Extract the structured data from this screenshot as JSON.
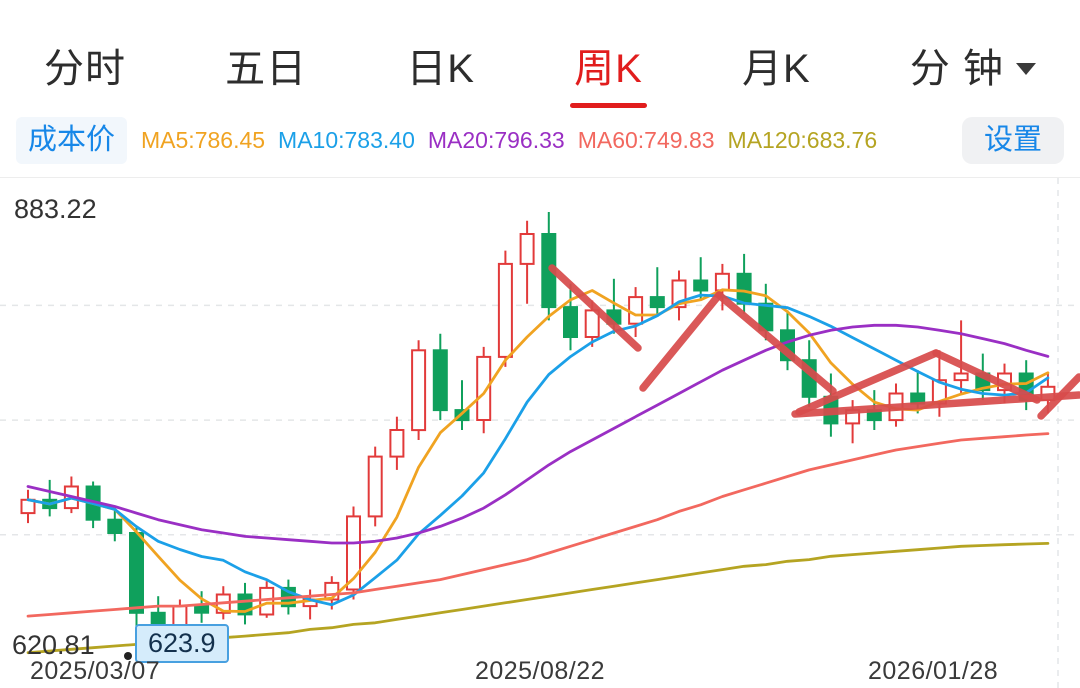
{
  "tabs": {
    "items": [
      {
        "label": "分时",
        "active": false
      },
      {
        "label": "五日",
        "active": false
      },
      {
        "label": "日K",
        "active": false
      },
      {
        "label": "周K",
        "active": true
      },
      {
        "label": "月K",
        "active": false
      },
      {
        "label": "分 钟",
        "active": false,
        "has_dropdown": true
      }
    ]
  },
  "toolbar": {
    "cost_price_label": "成本价",
    "settings_label": "设置",
    "ma_labels": [
      {
        "id": "MA5",
        "text": "MA5:786.45",
        "color": "#f0a321"
      },
      {
        "id": "MA10",
        "text": "MA10:783.40",
        "color": "#1ba0e8"
      },
      {
        "id": "MA20",
        "text": "MA20:796.33",
        "color": "#9a2fc4"
      },
      {
        "id": "MA60",
        "text": "MA60:749.83",
        "color": "#f2685f"
      },
      {
        "id": "MA120",
        "text": "MA120:683.76",
        "color": "#b5a422"
      }
    ]
  },
  "chart": {
    "y_max_label": "883.22",
    "y_min_label": "620.81",
    "low_badge": "623.9",
    "x_labels": [
      "2025/03/07",
      "2025/08/22",
      "2026/01/28"
    ]
  },
  "chart_data": {
    "type": "candlestick",
    "period": "weekly",
    "title": "周K",
    "ylim": [
      620.81,
      883.22
    ],
    "gridlines": [
      827,
      758,
      689
    ],
    "x_axis_labels": [
      "2025/03/07",
      "2025/08/22",
      "2026/01/28"
    ],
    "up_color": "#e23a3a",
    "down_color": "#0fa05c",
    "candles": [
      [
        702,
        716,
        696,
        710
      ],
      [
        710,
        722,
        700,
        705
      ],
      [
        705,
        724,
        702,
        718
      ],
      [
        718,
        721,
        693,
        698
      ],
      [
        698,
        705,
        685,
        690
      ],
      [
        690,
        694,
        627,
        642
      ],
      [
        642,
        652,
        620.81,
        632
      ],
      [
        632,
        650,
        623.9,
        646
      ],
      [
        646,
        655,
        636,
        642
      ],
      [
        642,
        658,
        638,
        653
      ],
      [
        653,
        660,
        635,
        641
      ],
      [
        641,
        661,
        639,
        657
      ],
      [
        657,
        662,
        641,
        646
      ],
      [
        646,
        656,
        638,
        650
      ],
      [
        650,
        664,
        644,
        660
      ],
      [
        656,
        706,
        650,
        700
      ],
      [
        700,
        742,
        694,
        736
      ],
      [
        736,
        760,
        728,
        752
      ],
      [
        752,
        806,
        746,
        800
      ],
      [
        800,
        810,
        758,
        764
      ],
      [
        764,
        782,
        752,
        758
      ],
      [
        758,
        802,
        750,
        796
      ],
      [
        796,
        860,
        790,
        852
      ],
      [
        852,
        878,
        828,
        870
      ],
      [
        870,
        883.22,
        818,
        826
      ],
      [
        826,
        840,
        800,
        808
      ],
      [
        808,
        830,
        802,
        824
      ],
      [
        824,
        843,
        810,
        816
      ],
      [
        816,
        838,
        808,
        832
      ],
      [
        832,
        850,
        820,
        826
      ],
      [
        826,
        848,
        818,
        842
      ],
      [
        842,
        856,
        830,
        836
      ],
      [
        836,
        852,
        824,
        846
      ],
      [
        846,
        858,
        822,
        828
      ],
      [
        828,
        840,
        806,
        812
      ],
      [
        812,
        824,
        788,
        794
      ],
      [
        794,
        806,
        766,
        772
      ],
      [
        772,
        786,
        748,
        756
      ],
      [
        756,
        770,
        744,
        764
      ],
      [
        764,
        776,
        752,
        758
      ],
      [
        758,
        780,
        754,
        774
      ],
      [
        774,
        788,
        762,
        768
      ],
      [
        768,
        800,
        760,
        782
      ],
      [
        782,
        818,
        774,
        786
      ],
      [
        786,
        798,
        770,
        776
      ],
      [
        776,
        792,
        768,
        786
      ],
      [
        786,
        794,
        764,
        770
      ],
      [
        770,
        786,
        762,
        778
      ]
    ],
    "ma_series": [
      {
        "name": "MA5",
        "current": 786.45,
        "color": "#f0a321",
        "values": [
          710,
          707.5,
          711,
          707.8,
          704.2,
          690.6,
          676,
          661.6,
          650.4,
          643,
          642.8,
          647.8,
          647.8,
          649.4,
          650.8,
          662.6,
          678.4,
          699.6,
          729.6,
          750.4,
          762,
          774,
          794,
          808,
          820.4,
          830.4,
          836,
          828.4,
          821.2,
          821.2,
          828,
          830.4,
          836.4,
          835.6,
          832.8,
          823.2,
          810.4,
          792.4,
          779.6,
          768.8,
          764.8,
          764,
          769.2,
          773.6,
          777.2,
          779.6,
          780,
          786.45
        ]
      },
      {
        "name": "MA10",
        "current": 783.4,
        "color": "#1ba0e8",
        "values": [
          710,
          707.5,
          711,
          707.8,
          704.2,
          693.8,
          685,
          680.1,
          675.9,
          673.6,
          666.7,
          661.9,
          654.7,
          649.9,
          646.9,
          652.7,
          663.1,
          673.7,
          689.5,
          700.6,
          712.3,
          726.2,
          746.8,
          768.8,
          785.4,
          796.2,
          805,
          811.4,
          814.6,
          820.8,
          829.2,
          833.2,
          832.6,
          828.4,
          827,
          825.6,
          820.4,
          814.4,
          807.6,
          800.8,
          794,
          787.2,
          780.8,
          776.6,
          774,
          773,
          774.5,
          783.4
        ]
      },
      {
        "name": "MA20",
        "current": 796.33,
        "color": "#9a2fc4",
        "values": [
          718,
          715,
          712,
          709,
          706,
          702,
          698,
          695,
          692,
          690,
          688,
          687,
          686,
          685,
          684,
          684,
          685,
          687,
          690,
          694,
          699,
          705,
          713,
          722,
          731,
          739,
          746,
          753,
          760,
          767,
          774,
          781,
          788,
          794,
          800,
          805,
          809,
          812,
          814,
          815,
          815,
          814,
          812,
          810,
          807,
          804,
          800,
          796.33
        ]
      },
      {
        "name": "MA60",
        "current": 749.83,
        "color": "#f2685f",
        "values": [
          640,
          641,
          642,
          643,
          644,
          645,
          646,
          646,
          647,
          648,
          649,
          650,
          651,
          652,
          653,
          654,
          656,
          658,
          660,
          662,
          665,
          668,
          671,
          674,
          678,
          682,
          686,
          690,
          694,
          698,
          703,
          707,
          712,
          716,
          720,
          724,
          728,
          731,
          734,
          737,
          740,
          742,
          744,
          746,
          747,
          748,
          749,
          749.83
        ]
      },
      {
        "name": "MA120",
        "current": 683.76,
        "color": "#b5a422",
        "values": [
          618,
          619,
          620,
          621,
          622,
          623,
          624,
          625,
          626,
          627,
          628,
          629,
          630,
          632,
          633,
          635,
          636,
          638,
          640,
          642,
          644,
          646,
          648,
          650,
          652,
          654,
          656,
          658,
          660,
          662,
          664,
          666,
          668,
          670,
          671,
          673,
          674,
          676,
          677,
          678,
          679,
          680,
          681,
          682,
          682.5,
          683,
          683.4,
          683.76
        ]
      }
    ],
    "annotations": {
      "description": "hand-drawn red trend strokes",
      "color": "#d84c4c",
      "width": 7.5,
      "segments": [
        [
          552,
          90,
          638,
          170
        ],
        [
          643,
          210,
          719,
          117
        ],
        [
          719,
          117,
          833,
          213
        ],
        [
          799,
          234,
          936,
          175
        ],
        [
          936,
          175,
          1037,
          222
        ],
        [
          795,
          236,
          1079,
          217
        ],
        [
          1041,
          238,
          1079,
          199
        ]
      ]
    }
  }
}
